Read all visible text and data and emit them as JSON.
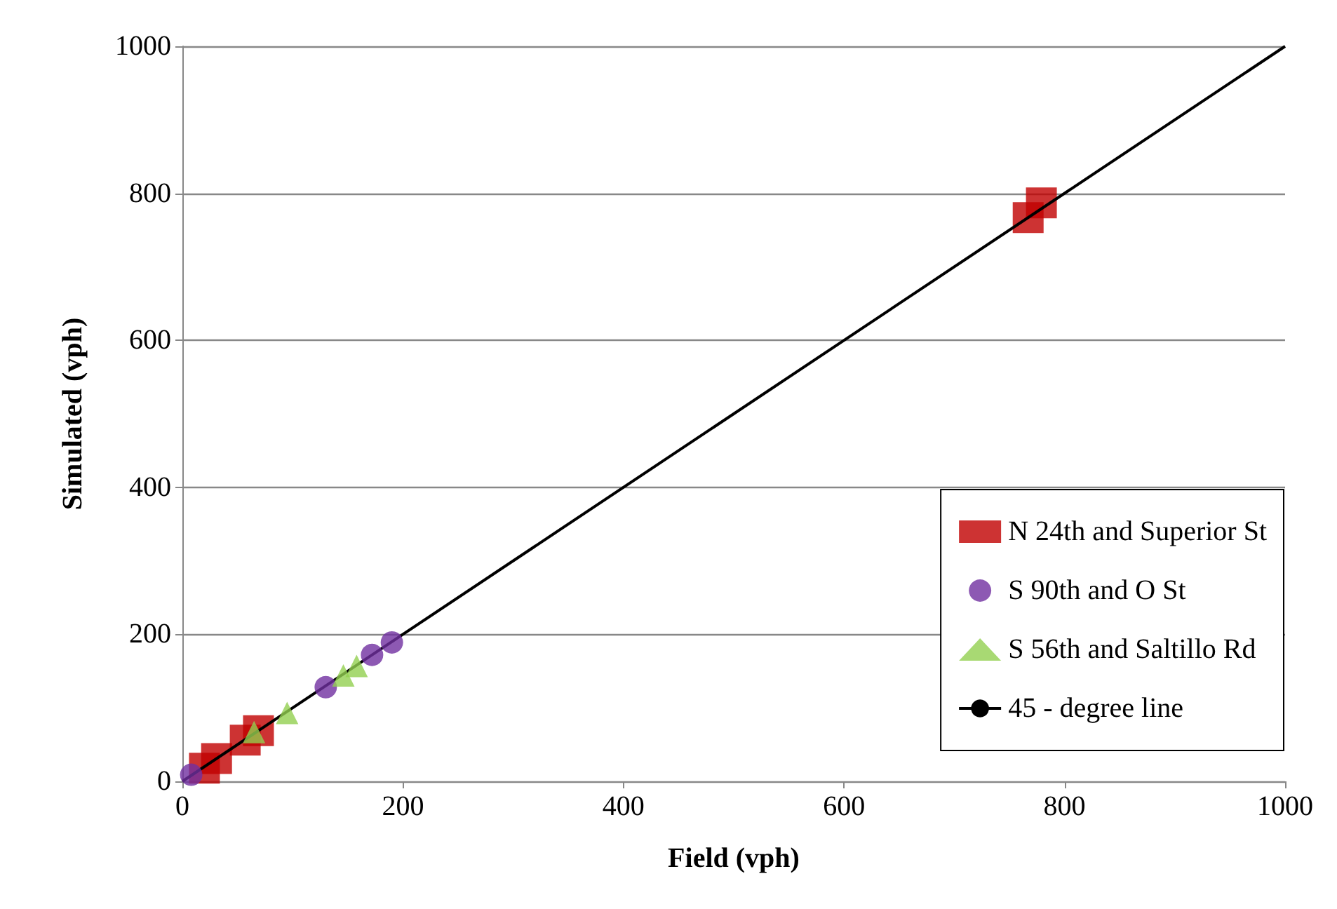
{
  "chart_data": {
    "type": "scatter",
    "xlabel": "Field (vph)",
    "ylabel": "Simulated (vph)",
    "xlim": [
      0,
      1000
    ],
    "ylim": [
      0,
      1000
    ],
    "xticks": [
      0,
      200,
      400,
      600,
      800,
      1000
    ],
    "yticks": [
      0,
      200,
      400,
      600,
      800,
      1000
    ],
    "grid": "y",
    "legend": "bottom right",
    "series": [
      {
        "name": "N 24th and Superior St",
        "color": "#c00000",
        "marker": "square",
        "x": [
          20,
          31,
          57,
          69,
          767,
          779
        ],
        "values": [
          18,
          31,
          56,
          69,
          767,
          787
        ]
      },
      {
        "name": "S 90th and O St",
        "color": "#7030a0",
        "marker": "circle",
        "x": [
          8,
          130,
          172,
          190
        ],
        "values": [
          9,
          128,
          172,
          189
        ]
      },
      {
        "name": "S 56th and Saltillo Rd",
        "color": "#92d050",
        "marker": "triangle",
        "x": [
          65,
          95,
          146,
          158
        ],
        "values": [
          67,
          93,
          144,
          157
        ]
      },
      {
        "name": "45 - degree line",
        "type": "line",
        "color": "#000000",
        "marker": "none",
        "x": [
          0,
          1000
        ],
        "values": [
          0,
          1000
        ]
      }
    ]
  }
}
